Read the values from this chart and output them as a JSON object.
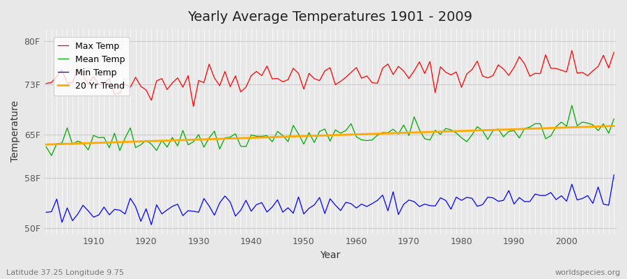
{
  "title": "Yearly Average Temperatures 1901 - 2009",
  "xlabel": "Year",
  "ylabel": "Temperature",
  "bg_color": "#e8e8e8",
  "plot_bg_color": "#e8e8e8",
  "grid_color": "#ffffff",
  "start_year": 1901,
  "end_year": 2009,
  "yticks": [
    50,
    58,
    65,
    73,
    80
  ],
  "ylim": [
    49,
    82
  ],
  "xlim": [
    1901,
    2009
  ],
  "legend_labels": [
    "Max Temp",
    "Mean Temp",
    "Min Temp",
    "20 Yr Trend"
  ],
  "legend_colors": [
    "#ff0000",
    "#00aa00",
    "#0000ff",
    "#ffaa00"
  ],
  "max_temp_base": 73.5,
  "mean_temp_base": 63.5,
  "min_temp_base": 52.5,
  "footer_left": "Latitude 37.25 Longitude 9.75",
  "footer_right": "worldspecies.org"
}
